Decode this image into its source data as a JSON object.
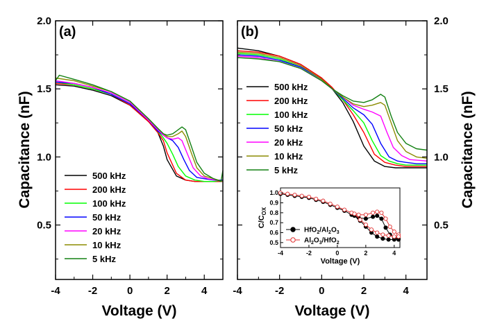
{
  "chart_data": {
    "type": "line",
    "shared": {
      "ylabel": "Capacitance (nF)",
      "ylim": [
        0.1,
        2.0
      ],
      "yticks": [
        "0.5",
        "1.0",
        "1.5",
        "2.0"
      ],
      "xticks": [
        "-4",
        "-2",
        "0",
        "2",
        "4"
      ]
    },
    "series_colors": [
      "#000000",
      "#ff0000",
      "#00ff00",
      "#0000ff",
      "#ff00ff",
      "#8b8b00",
      "#128012"
    ],
    "panels": [
      {
        "panel_label": "(a)",
        "xlabel": "Voltage (V)",
        "xlim": [
          -4,
          5
        ],
        "legend_position": "lower-left",
        "series": [
          {
            "name": "500 kHz",
            "x": [
              -4,
              -3,
              -2,
              -1,
              0,
              1,
              1.5,
              1.8,
              2,
              2.5,
              3,
              3.5,
              4,
              4.5,
              5
            ],
            "y": [
              1.53,
              1.52,
              1.49,
              1.45,
              1.38,
              1.26,
              1.18,
              1.08,
              0.98,
              0.86,
              0.83,
              0.82,
              0.82,
              0.82,
              0.82
            ]
          },
          {
            "name": "200 kHz",
            "x": [
              -4,
              -3,
              -2,
              -1,
              0,
              1,
              1.5,
              1.8,
              2,
              2.5,
              3,
              3.5,
              4,
              4.5,
              5
            ],
            "y": [
              1.54,
              1.53,
              1.5,
              1.46,
              1.38,
              1.26,
              1.18,
              1.12,
              1.03,
              0.88,
              0.83,
              0.82,
              0.82,
              0.82,
              0.82
            ]
          },
          {
            "name": "100 kHz",
            "x": [
              -4,
              -3,
              -2,
              -1,
              0,
              1,
              1.5,
              1.8,
              2,
              2.3,
              2.6,
              3,
              3.5,
              4,
              4.5,
              5
            ],
            "y": [
              1.55,
              1.53,
              1.5,
              1.46,
              1.39,
              1.27,
              1.19,
              1.14,
              1.1,
              1.02,
              0.93,
              0.86,
              0.83,
              0.82,
              0.82,
              0.83
            ]
          },
          {
            "name": "50 kHz",
            "x": [
              -4,
              -3,
              -2,
              -1,
              0,
              1,
              1.5,
              1.8,
              2,
              2.3,
              2.6,
              2.9,
              3.2,
              3.6,
              4,
              4.5,
              5
            ],
            "y": [
              1.55,
              1.54,
              1.51,
              1.46,
              1.39,
              1.27,
              1.19,
              1.16,
              1.14,
              1.12,
              1.07,
              0.98,
              0.9,
              0.85,
              0.84,
              0.83,
              0.83
            ]
          },
          {
            "name": "20 kHz",
            "x": [
              -4,
              -3,
              -2,
              -1,
              0,
              1,
              1.5,
              1.8,
              2,
              2.3,
              2.6,
              2.8,
              3.1,
              3.4,
              3.8,
              4.2,
              5
            ],
            "y": [
              1.56,
              1.54,
              1.51,
              1.47,
              1.4,
              1.27,
              1.2,
              1.16,
              1.14,
              1.13,
              1.14,
              1.12,
              1.02,
              0.92,
              0.86,
              0.84,
              0.82
            ]
          },
          {
            "name": "10 kHz",
            "x": [
              -4,
              -3,
              -2,
              -1,
              0,
              1,
              1.5,
              1.8,
              2,
              2.3,
              2.6,
              2.8,
              3.0,
              3.3,
              3.6,
              4,
              4.5,
              5
            ],
            "y": [
              1.58,
              1.56,
              1.52,
              1.48,
              1.41,
              1.28,
              1.21,
              1.17,
              1.15,
              1.15,
              1.17,
              1.19,
              1.15,
              1.03,
              0.92,
              0.86,
              0.84,
              0.82
            ]
          },
          {
            "name": "5 kHz",
            "x": [
              -4,
              -3.8,
              -3,
              -2,
              -1,
              0,
              1,
              1.5,
              1.8,
              2,
              2.3,
              2.6,
              2.8,
              3.0,
              3.3,
              3.6,
              4,
              4.5,
              4.9,
              5
            ],
            "y": [
              1.56,
              1.6,
              1.57,
              1.53,
              1.48,
              1.41,
              1.28,
              1.21,
              1.17,
              1.16,
              1.17,
              1.2,
              1.22,
              1.2,
              1.08,
              0.96,
              0.88,
              0.84,
              0.82,
              0.9
            ]
          }
        ]
      },
      {
        "panel_label": "(b)",
        "xlabel": "Voltage (V)",
        "xlim": [
          -4,
          5
        ],
        "legend_position": "upper-left",
        "series": [
          {
            "name": "500 kHz",
            "x": [
              -4,
              -3,
              -2,
              -1,
              0,
              0.5,
              1,
              1.5,
              2,
              2.5,
              3,
              3.5,
              4,
              4.5,
              5
            ],
            "y": [
              1.8,
              1.78,
              1.74,
              1.68,
              1.58,
              1.5,
              1.4,
              1.26,
              1.08,
              0.97,
              0.93,
              0.92,
              0.92,
              0.92,
              0.92
            ]
          },
          {
            "name": "200 kHz",
            "x": [
              -4,
              -3,
              -2,
              -1,
              0,
              0.5,
              1,
              1.5,
              2,
              2.5,
              3,
              3.5,
              4,
              4.5,
              5
            ],
            "y": [
              1.78,
              1.77,
              1.74,
              1.68,
              1.58,
              1.51,
              1.42,
              1.31,
              1.18,
              1.02,
              0.96,
              0.94,
              0.93,
              0.93,
              0.93
            ]
          },
          {
            "name": "100 kHz",
            "x": [
              -4,
              -3,
              -2,
              -1,
              0,
              0.5,
              1,
              1.5,
              2,
              2.4,
              2.8,
              3.2,
              3.6,
              4,
              4.5,
              5
            ],
            "y": [
              1.76,
              1.75,
              1.72,
              1.66,
              1.57,
              1.5,
              1.42,
              1.34,
              1.25,
              1.12,
              1.01,
              0.97,
              0.95,
              0.94,
              0.94,
              0.94
            ]
          },
          {
            "name": "50 kHz",
            "x": [
              -4,
              -3,
              -2,
              -1,
              0,
              0.5,
              1,
              1.5,
              2,
              2.4,
              2.8,
              3.2,
              3.6,
              4,
              4.5,
              5
            ],
            "y": [
              1.75,
              1.74,
              1.71,
              1.66,
              1.57,
              1.5,
              1.43,
              1.36,
              1.31,
              1.24,
              1.1,
              1.0,
              0.97,
              0.96,
              0.95,
              0.95
            ]
          },
          {
            "name": "20 kHz",
            "x": [
              -4,
              -3,
              -2,
              -1,
              0,
              0.5,
              1,
              1.5,
              2,
              2.4,
              2.8,
              3.1,
              3.4,
              3.8,
              4.2,
              5
            ],
            "y": [
              1.74,
              1.73,
              1.7,
              1.65,
              1.56,
              1.5,
              1.44,
              1.38,
              1.35,
              1.33,
              1.3,
              1.18,
              1.07,
              1.01,
              0.98,
              0.97
            ]
          },
          {
            "name": "10 kHz",
            "x": [
              -4,
              -3,
              -2,
              -1,
              0,
              0.5,
              1,
              1.5,
              2,
              2.4,
              2.8,
              3.0,
              3.3,
              3.6,
              4,
              4.5,
              5
            ],
            "y": [
              1.77,
              1.76,
              1.73,
              1.67,
              1.57,
              1.5,
              1.44,
              1.39,
              1.37,
              1.38,
              1.4,
              1.38,
              1.25,
              1.12,
              1.04,
              1.0,
              0.99
            ]
          },
          {
            "name": "5 kHz",
            "x": [
              -4,
              -3,
              -2,
              -1,
              0,
              0.5,
              1,
              1.5,
              2,
              2.4,
              2.8,
              3.0,
              3.3,
              3.6,
              4,
              4.5,
              5
            ],
            "y": [
              1.73,
              1.72,
              1.7,
              1.65,
              1.56,
              1.5,
              1.45,
              1.41,
              1.4,
              1.42,
              1.46,
              1.44,
              1.3,
              1.18,
              1.1,
              1.06,
              1.05
            ]
          }
        ]
      }
    ],
    "inset": {
      "ylabel_main": "C/C",
      "ylabel_sub": "OX",
      "xlabel": "Voltage (V)",
      "xlim": [
        -4,
        4.4
      ],
      "ylim": [
        0.45,
        1.05
      ],
      "xticks": [
        "-4",
        "-2",
        "0",
        "2",
        "4"
      ],
      "yticks": [
        "0.5",
        "0.6",
        "0.7",
        "0.8",
        "0.9",
        "1.0"
      ],
      "legend_position": "left",
      "series": [
        {
          "name": "HfO2/Al2O3",
          "legend_parts": [
            [
              "HfO",
              false
            ],
            [
              "2",
              true
            ],
            [
              "/Al",
              false
            ],
            [
              "2",
              true
            ],
            [
              "O",
              false
            ],
            [
              "3",
              true
            ]
          ],
          "color": "#000000",
          "marker": "filled-circle",
          "x": [
            -4,
            -3.5,
            -3,
            -2.5,
            -2,
            -1.5,
            -1,
            -0.5,
            0,
            0.5,
            1,
            1.5,
            2,
            2.5,
            2.8,
            3.1,
            3.4,
            3.7,
            4,
            4.3,
            4.3,
            4,
            3.6,
            3.2,
            2.8,
            2.4,
            2,
            1.6,
            1.2
          ],
          "y": [
            0.99,
            0.98,
            0.97,
            0.96,
            0.95,
            0.93,
            0.91,
            0.88,
            0.85,
            0.82,
            0.78,
            0.75,
            0.74,
            0.76,
            0.77,
            0.74,
            0.65,
            0.58,
            0.55,
            0.54,
            0.53,
            0.53,
            0.53,
            0.54,
            0.56,
            0.6,
            0.66,
            0.72,
            0.77
          ]
        },
        {
          "name": "Al2O3/HfO2",
          "legend_parts": [
            [
              "Al",
              false
            ],
            [
              "2",
              true
            ],
            [
              "O",
              false
            ],
            [
              "3",
              true
            ],
            [
              "/HfO",
              false
            ],
            [
              "2",
              true
            ]
          ],
          "color": "#e03030",
          "marker": "open-circle",
          "x": [
            -4,
            -3.5,
            -3,
            -2.5,
            -2,
            -1.5,
            -1,
            -0.5,
            0,
            0.5,
            1,
            1.5,
            2,
            2.5,
            2.8,
            3.1,
            3.4,
            3.7,
            4,
            4.3,
            4.3,
            4,
            3.6,
            3.2,
            2.8,
            2.4,
            2,
            1.6,
            1.2
          ],
          "y": [
            1.0,
            0.99,
            0.98,
            0.97,
            0.96,
            0.94,
            0.92,
            0.89,
            0.86,
            0.83,
            0.8,
            0.78,
            0.78,
            0.8,
            0.81,
            0.8,
            0.74,
            0.66,
            0.61,
            0.58,
            0.56,
            0.56,
            0.57,
            0.58,
            0.6,
            0.63,
            0.68,
            0.73,
            0.79
          ]
        }
      ]
    }
  }
}
